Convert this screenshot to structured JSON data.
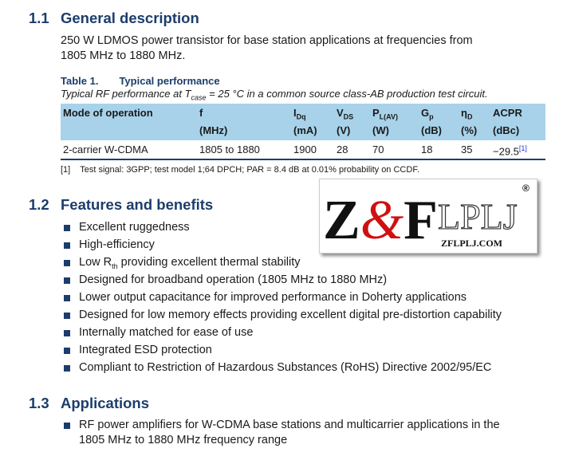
{
  "s1": {
    "num": "1.1",
    "title": "General description",
    "body1": "250 W LDMOS power transistor for base station applications at frequencies from",
    "body2": "1805 MHz to 1880 MHz."
  },
  "table": {
    "label": "Table 1.",
    "title": "Typical performance",
    "subtitle_pre": "Typical RF performance at T",
    "subtitle_sub": "case",
    "subtitle_post": " = 25 °C in a common source class-AB production test circuit.",
    "headers": [
      {
        "main": "Mode of operation",
        "sub": "",
        "unit": ""
      },
      {
        "main": "f",
        "sub": "",
        "unit": "(MHz)"
      },
      {
        "main": "I",
        "sub": "Dq",
        "unit": "(mA)"
      },
      {
        "main": "V",
        "sub": "DS",
        "unit": "(V)"
      },
      {
        "main": "P",
        "sub": "L(AV)",
        "unit": "(W)"
      },
      {
        "main": "G",
        "sub": "p",
        "unit": "(dB)"
      },
      {
        "main": "η",
        "sub": "D",
        "unit": "(%)"
      },
      {
        "main": "ACPR",
        "sub": "",
        "unit": "(dBc)"
      }
    ],
    "row": [
      "2-carrier W-CDMA",
      "1805 to 1880",
      "1900",
      "28",
      "70",
      "18",
      "35",
      "−29.5"
    ],
    "ref": "[1]",
    "footnote_num": "[1]",
    "footnote": "Test signal: 3GPP; test model 1;64 DPCH; PAR = 8.4 dB at 0.01% probability on CCDF."
  },
  "s2": {
    "num": "1.2",
    "title": "Features and benefits",
    "items": [
      "Excellent ruggedness",
      "High-efficiency",
      "Low R",
      "Designed for broadband operation (1805 MHz to 1880 MHz)",
      "Lower output capacitance for improved performance in Doherty applications",
      "Designed for low memory effects providing excellent digital pre-distortion capability",
      "Internally matched for ease of use",
      "Integrated ESD protection",
      "Compliant to Restriction of Hazardous Substances (RoHS) Directive 2002/95/EC"
    ],
    "item3_sub": "th",
    "item3_post": " providing excellent thermal stability"
  },
  "s3": {
    "num": "1.3",
    "title": "Applications",
    "item_l1": "RF power amplifiers for W-CDMA base stations and multicarrier applications in the",
    "item_l2": "1805 MHz to 1880 MHz frequency range"
  },
  "logo": {
    "text": "Z&FLPLJ",
    "url": "ZFLPLJ.COM",
    "mark": "®"
  },
  "colors": {
    "heading": "#1c3d6b",
    "table_header": "#a8d2ea",
    "logo_red": "#d01010"
  }
}
